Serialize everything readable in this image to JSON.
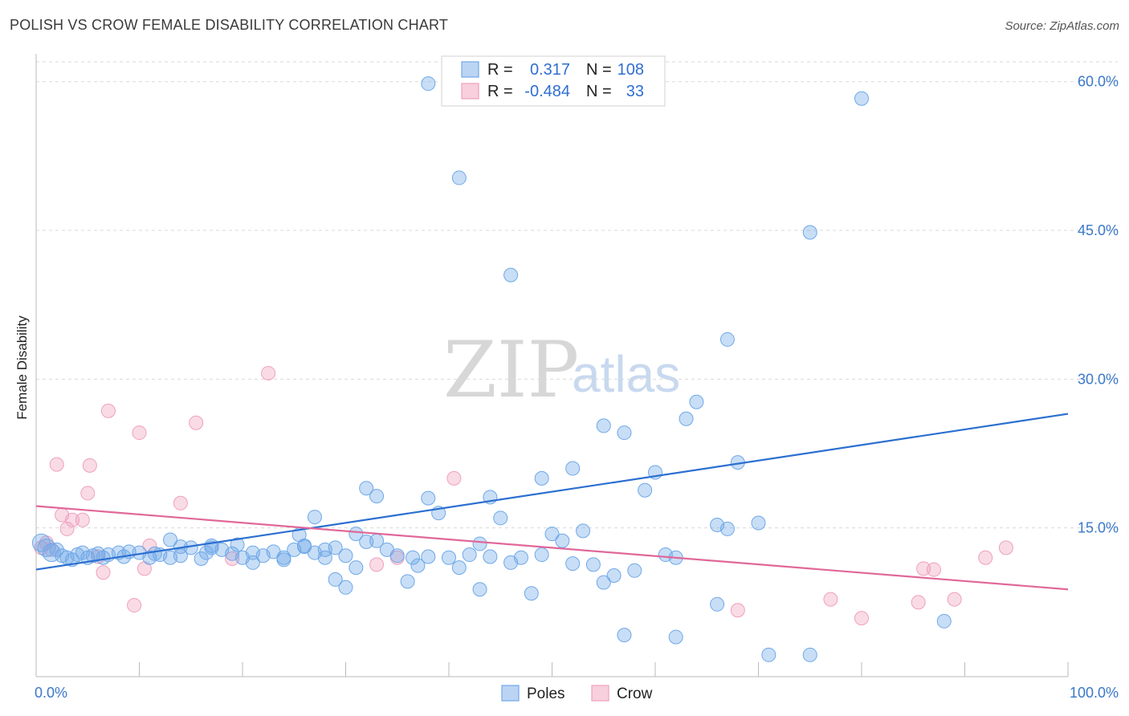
{
  "title": "POLISH VS CROW FEMALE DISABILITY CORRELATION CHART",
  "source": "Source: ZipAtlas.com",
  "watermark": {
    "zip": "ZIP",
    "atlas": "atlas"
  },
  "colors": {
    "poles": "#6fa8e8",
    "poles_line": "#2b6fd0",
    "crow": "#f0a0bd",
    "crow_line": "#e0689a",
    "tick_text": "#3b78c9",
    "grid": "#d9d9d9"
  },
  "legend_box": [
    {
      "r_label": "R =",
      "r_value": "0.317",
      "n_label": "N =",
      "n_value": "108"
    },
    {
      "r_label": "R =",
      "r_value": "-0.484",
      "n_label": "N =",
      "n_value": "33"
    }
  ],
  "chart_data": {
    "type": "scatter",
    "title": "POLISH VS CROW FEMALE DISABILITY CORRELATION CHART",
    "xlabel": "",
    "ylabel": "Female Disability",
    "xlim": [
      0,
      100
    ],
    "ylim": [
      0,
      62
    ],
    "x_tick_labels": [
      "0.0%",
      "100.0%"
    ],
    "y_ticks": [
      15,
      30,
      45,
      60
    ],
    "y_tick_labels": [
      "15.0%",
      "30.0%",
      "45.0%",
      "60.0%"
    ],
    "grid": true,
    "legend_position": "bottom-center",
    "series": [
      {
        "name": "Poles",
        "r": 0.317,
        "n": 108,
        "trend": [
          [
            0,
            10.8
          ],
          [
            100,
            26.5
          ]
        ],
        "points": [
          [
            0.5,
            13.5
          ],
          [
            1,
            13
          ],
          [
            1.5,
            12.5
          ],
          [
            2,
            12.8
          ],
          [
            2.5,
            12.2
          ],
          [
            3,
            12
          ],
          [
            3.5,
            11.8
          ],
          [
            4,
            12.3
          ],
          [
            4.5,
            12.5
          ],
          [
            5,
            12
          ],
          [
            5.5,
            12.2
          ],
          [
            6,
            12.4
          ],
          [
            6.5,
            12
          ],
          [
            7,
            12.3
          ],
          [
            8,
            12.5
          ],
          [
            8.5,
            12.1
          ],
          [
            9,
            12.6
          ],
          [
            10,
            12.5
          ],
          [
            11,
            12
          ],
          [
            11.5,
            12.4
          ],
          [
            12,
            12.3
          ],
          [
            13,
            12
          ],
          [
            14,
            12.2
          ],
          [
            15,
            13
          ],
          [
            16,
            11.9
          ],
          [
            16.5,
            12.5
          ],
          [
            17,
            13.2
          ],
          [
            18,
            12.8
          ],
          [
            19,
            12.4
          ],
          [
            20,
            12
          ],
          [
            21,
            12.5
          ],
          [
            22,
            12.2
          ],
          [
            23,
            12.6
          ],
          [
            24,
            12
          ],
          [
            25,
            12.8
          ],
          [
            26,
            13.2
          ],
          [
            27,
            12.5
          ],
          [
            28,
            12.8
          ],
          [
            29,
            13
          ],
          [
            30,
            12.2
          ],
          [
            31,
            11
          ],
          [
            13,
            13.8
          ],
          [
            14,
            13.1
          ],
          [
            17,
            13
          ],
          [
            19.5,
            13.3
          ],
          [
            24,
            11.8
          ],
          [
            25.5,
            14.3
          ],
          [
            26,
            13.1
          ],
          [
            28,
            12
          ],
          [
            29,
            9.8
          ],
          [
            30,
            9
          ],
          [
            31,
            14.4
          ],
          [
            32,
            13.6
          ],
          [
            33,
            13.7
          ],
          [
            34,
            12.8
          ],
          [
            35,
            12.2
          ],
          [
            36,
            9.6
          ],
          [
            36.5,
            12
          ],
          [
            37,
            11.2
          ],
          [
            38,
            12.1
          ],
          [
            38,
            18
          ],
          [
            39,
            16.5
          ],
          [
            40,
            12
          ],
          [
            41,
            11
          ],
          [
            42,
            12.3
          ],
          [
            43,
            8.8
          ],
          [
            43,
            13.4
          ],
          [
            44,
            12.1
          ],
          [
            44,
            18.1
          ],
          [
            45,
            16
          ],
          [
            46,
            11.5
          ],
          [
            47,
            12
          ],
          [
            48,
            8.4
          ],
          [
            49,
            12.3
          ],
          [
            49,
            20
          ],
          [
            50,
            14.4
          ],
          [
            51,
            13.7
          ],
          [
            52,
            11.4
          ],
          [
            52,
            21
          ],
          [
            53,
            14.7
          ],
          [
            54,
            11.3
          ],
          [
            55,
            9.5
          ],
          [
            55,
            25.3
          ],
          [
            56,
            10.2
          ],
          [
            57,
            24.6
          ],
          [
            58,
            10.7
          ],
          [
            59,
            18.8
          ],
          [
            60,
            20.6
          ],
          [
            61,
            12.3
          ],
          [
            62,
            12
          ],
          [
            63,
            26
          ],
          [
            64,
            27.7
          ],
          [
            66,
            15.3
          ],
          [
            67,
            14.9
          ],
          [
            67,
            34
          ],
          [
            68,
            21.6
          ],
          [
            70,
            15.5
          ],
          [
            71,
            2.2
          ],
          [
            75,
            44.8
          ],
          [
            75,
            2.2
          ],
          [
            80,
            58.3
          ],
          [
            88,
            5.6
          ],
          [
            57,
            4.2
          ],
          [
            62,
            4
          ],
          [
            66,
            7.3
          ],
          [
            41,
            50.3
          ],
          [
            46,
            40.5
          ],
          [
            38,
            59.8
          ],
          [
            32,
            19
          ],
          [
            27,
            16.1
          ],
          [
            33,
            18.2
          ],
          [
            21,
            11.5
          ]
        ]
      },
      {
        "name": "Crow",
        "r": -0.484,
        "n": 33,
        "trend": [
          [
            0,
            17.2
          ],
          [
            100,
            8.8
          ]
        ],
        "points": [
          [
            0.5,
            13
          ],
          [
            1,
            13.5
          ],
          [
            1.5,
            12.8
          ],
          [
            2,
            21.4
          ],
          [
            2.5,
            16.3
          ],
          [
            3,
            14.9
          ],
          [
            3.5,
            15.8
          ],
          [
            4.5,
            15.8
          ],
          [
            5,
            18.5
          ],
          [
            5.2,
            21.3
          ],
          [
            6,
            12.1
          ],
          [
            6.5,
            10.5
          ],
          [
            7,
            26.8
          ],
          [
            9.5,
            7.2
          ],
          [
            10,
            24.6
          ],
          [
            10.5,
            10.9
          ],
          [
            11,
            13.2
          ],
          [
            14,
            17.5
          ],
          [
            15.5,
            25.6
          ],
          [
            19,
            11.9
          ],
          [
            22.5,
            30.6
          ],
          [
            33,
            11.3
          ],
          [
            35,
            12
          ],
          [
            40.5,
            20
          ],
          [
            68,
            6.7
          ],
          [
            77,
            7.8
          ],
          [
            80,
            5.9
          ],
          [
            85.5,
            7.5
          ],
          [
            86,
            10.9
          ],
          [
            87,
            10.8
          ],
          [
            89,
            7.8
          ],
          [
            92,
            12
          ],
          [
            94,
            13
          ]
        ]
      }
    ]
  },
  "bottom_legend": [
    {
      "label": "Poles"
    },
    {
      "label": "Crow"
    }
  ]
}
